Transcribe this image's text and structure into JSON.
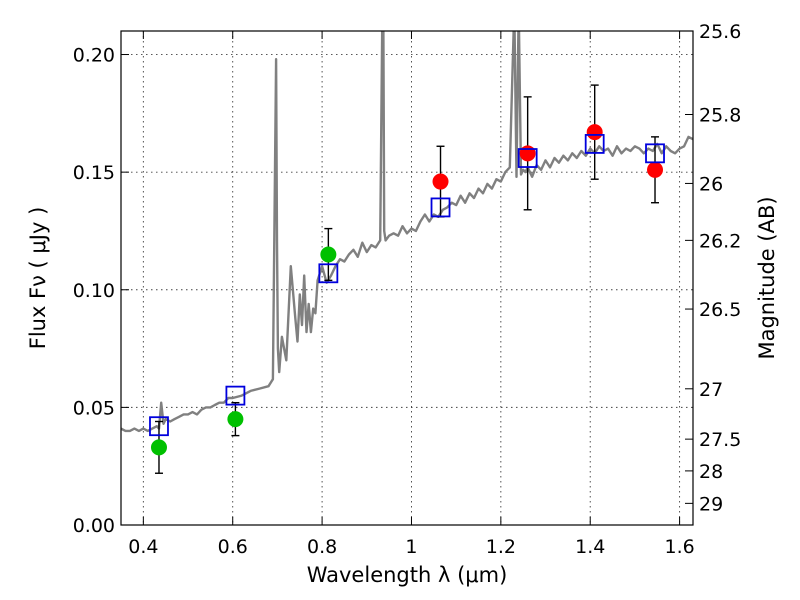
{
  "chart_data": {
    "type": "scatter",
    "xlabel": "Wavelength  λ (μm)",
    "ylabel": "Flux  Fν  ( μJy )",
    "y2label": "Magnitude (AB)",
    "xlim": [
      0.35,
      1.63
    ],
    "ylim": [
      0.0,
      0.21
    ],
    "grid": true,
    "x_ticks": [
      0.4,
      0.6,
      0.8,
      1.0,
      1.2,
      1.4,
      1.6
    ],
    "x_tick_labels": [
      "0.4",
      "0.6",
      "0.8",
      "1",
      "1.2",
      "1.4",
      "1.6"
    ],
    "y_ticks": [
      0.0,
      0.05,
      0.1,
      0.15,
      0.2
    ],
    "y_tick_labels": [
      "0.00",
      "0.05",
      "0.10",
      "0.15",
      "0.20"
    ],
    "y2_ticks": [
      {
        "label": "25.6",
        "flux": 0.21
      },
      {
        "label": "25.8",
        "flux": 0.1745
      },
      {
        "label": "26",
        "flux": 0.1452
      },
      {
        "label": "26.2",
        "flux": 0.121
      },
      {
        "label": "26.5",
        "flux": 0.0918
      },
      {
        "label": "27",
        "flux": 0.0579
      },
      {
        "label": "27.5",
        "flux": 0.0365
      },
      {
        "label": "28",
        "flux": 0.023
      },
      {
        "label": "29",
        "flux": 0.0092
      }
    ],
    "series": [
      {
        "kind": "line",
        "color": "#808080",
        "x": [
          0.35,
          0.36,
          0.37,
          0.38,
          0.39,
          0.4,
          0.41,
          0.42,
          0.43,
          0.435,
          0.44,
          0.445,
          0.45,
          0.46,
          0.47,
          0.48,
          0.49,
          0.5,
          0.51,
          0.52,
          0.53,
          0.54,
          0.55,
          0.56,
          0.57,
          0.58,
          0.59,
          0.6,
          0.62,
          0.64,
          0.66,
          0.68,
          0.69,
          0.697,
          0.699,
          0.701,
          0.704,
          0.71,
          0.72,
          0.73,
          0.74,
          0.745,
          0.75,
          0.755,
          0.76,
          0.765,
          0.77,
          0.775,
          0.78,
          0.785,
          0.79,
          0.8,
          0.81,
          0.82,
          0.83,
          0.84,
          0.85,
          0.86,
          0.87,
          0.88,
          0.89,
          0.9,
          0.91,
          0.92,
          0.93,
          0.935,
          0.937,
          0.939,
          0.942,
          0.95,
          0.96,
          0.97,
          0.98,
          0.99,
          1.0,
          1.01,
          1.02,
          1.03,
          1.04,
          1.05,
          1.06,
          1.07,
          1.08,
          1.09,
          1.1,
          1.11,
          1.12,
          1.13,
          1.14,
          1.15,
          1.16,
          1.17,
          1.18,
          1.19,
          1.2,
          1.21,
          1.22,
          1.23,
          1.235,
          1.24,
          1.245,
          1.25,
          1.255,
          1.26,
          1.27,
          1.28,
          1.29,
          1.3,
          1.31,
          1.32,
          1.33,
          1.34,
          1.35,
          1.36,
          1.37,
          1.38,
          1.39,
          1.4,
          1.41,
          1.42,
          1.43,
          1.44,
          1.45,
          1.46,
          1.47,
          1.48,
          1.49,
          1.5,
          1.51,
          1.52,
          1.53,
          1.54,
          1.55,
          1.56,
          1.57,
          1.58,
          1.59,
          1.6,
          1.61,
          1.62,
          1.63
        ],
        "y": [
          0.041,
          0.04,
          0.04,
          0.041,
          0.04,
          0.041,
          0.04,
          0.041,
          0.042,
          0.041,
          0.052,
          0.043,
          0.045,
          0.044,
          0.045,
          0.046,
          0.047,
          0.047,
          0.048,
          0.047,
          0.049,
          0.05,
          0.05,
          0.051,
          0.052,
          0.052,
          0.054,
          0.054,
          0.055,
          0.057,
          0.058,
          0.059,
          0.062,
          0.198,
          0.12,
          0.075,
          0.065,
          0.08,
          0.07,
          0.11,
          0.088,
          0.078,
          0.098,
          0.085,
          0.106,
          0.082,
          0.094,
          0.082,
          0.092,
          0.09,
          0.104,
          0.11,
          0.103,
          0.106,
          0.11,
          0.113,
          0.112,
          0.115,
          0.117,
          0.114,
          0.12,
          0.116,
          0.119,
          0.118,
          0.121,
          0.22,
          0.22,
          0.125,
          0.121,
          0.123,
          0.124,
          0.123,
          0.127,
          0.124,
          0.126,
          0.125,
          0.129,
          0.132,
          0.129,
          0.132,
          0.131,
          0.134,
          0.135,
          0.137,
          0.136,
          0.14,
          0.137,
          0.141,
          0.139,
          0.143,
          0.141,
          0.145,
          0.143,
          0.147,
          0.146,
          0.15,
          0.152,
          0.22,
          0.148,
          0.22,
          0.149,
          0.151,
          0.15,
          0.152,
          0.148,
          0.153,
          0.151,
          0.155,
          0.152,
          0.156,
          0.154,
          0.157,
          0.155,
          0.158,
          0.156,
          0.159,
          0.157,
          0.16,
          0.158,
          0.161,
          0.159,
          0.16,
          0.157,
          0.161,
          0.158,
          0.16,
          0.159,
          0.161,
          0.16,
          0.158,
          0.16,
          0.159,
          0.162,
          0.158,
          0.161,
          0.159,
          0.158,
          0.16,
          0.161,
          0.165,
          0.164
        ]
      },
      {
        "kind": "points",
        "marker": "circle",
        "color": "#00c000",
        "points": [
          {
            "x": 0.435,
            "y": 0.033,
            "err": 0.011
          },
          {
            "x": 0.606,
            "y": 0.045,
            "err": 0.007
          },
          {
            "x": 0.814,
            "y": 0.115,
            "err": 0.011
          }
        ]
      },
      {
        "kind": "points",
        "marker": "circle",
        "color": "#ff0000",
        "points": [
          {
            "x": 1.065,
            "y": 0.146,
            "err": 0.015
          },
          {
            "x": 1.26,
            "y": 0.158,
            "err": 0.024
          },
          {
            "x": 1.41,
            "y": 0.167,
            "err": 0.02
          },
          {
            "x": 1.545,
            "y": 0.151,
            "err": 0.014
          }
        ]
      },
      {
        "kind": "points",
        "marker": "square",
        "color": "#0000dd",
        "points": [
          {
            "x": 0.435,
            "y": 0.042
          },
          {
            "x": 0.606,
            "y": 0.055
          },
          {
            "x": 0.814,
            "y": 0.107
          },
          {
            "x": 1.065,
            "y": 0.135
          },
          {
            "x": 1.26,
            "y": 0.156
          },
          {
            "x": 1.41,
            "y": 0.162
          },
          {
            "x": 1.545,
            "y": 0.158
          }
        ]
      }
    ]
  }
}
